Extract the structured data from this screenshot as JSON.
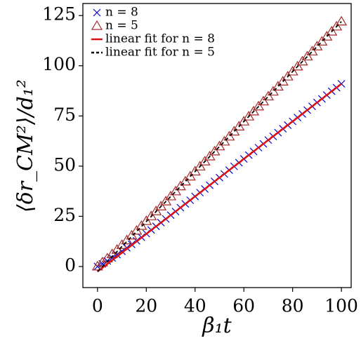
{
  "chart_data": {
    "type": "scatter",
    "xlabel": "β₁t",
    "ylabel": "⟨δr_CM²⟩/d₁²",
    "xlim": [
      -6,
      104
    ],
    "ylim": [
      -10.5,
      131
    ],
    "xticks": [
      0,
      20,
      40,
      60,
      80,
      100
    ],
    "yticks": [
      0,
      25,
      50,
      75,
      100,
      125
    ],
    "legend": "upper left",
    "series": [
      {
        "name": "n = 8",
        "color": "#0000cc",
        "marker": "x",
        "x": [
          0,
          2,
          4,
          6,
          8,
          10,
          12,
          14,
          16,
          18,
          20,
          22,
          24,
          26,
          28,
          30,
          32,
          34,
          36,
          38,
          40,
          42,
          44,
          46,
          48,
          50,
          52,
          54,
          56,
          58,
          60,
          62,
          64,
          66,
          68,
          70,
          72,
          74,
          76,
          78,
          80,
          82,
          84,
          86,
          88,
          90,
          92,
          94,
          96,
          98,
          100
        ],
        "values": [
          0,
          1.3,
          2.8,
          4.3,
          5.9,
          7.6,
          9.3,
          11.0,
          12.8,
          14.6,
          16.4,
          18.2,
          20.0,
          21.9,
          23.7,
          25.6,
          27.4,
          29.3,
          31.2,
          33.0,
          34.9,
          36.8,
          38.6,
          40.5,
          42.4,
          44.3,
          46.1,
          48.0,
          49.9,
          51.7,
          53.6,
          55.5,
          57.3,
          59.2,
          61.1,
          63.0,
          64.8,
          66.7,
          68.6,
          70.4,
          72.3,
          74.2,
          76.0,
          77.9,
          79.8,
          81.7,
          83.5,
          85.4,
          87.3,
          89.1,
          91.0
        ]
      },
      {
        "name": "n = 5",
        "color": "#a52a2a",
        "marker": "triangle",
        "x": [
          0,
          2,
          4,
          6,
          8,
          10,
          12,
          14,
          16,
          18,
          20,
          22,
          24,
          26,
          28,
          30,
          32,
          34,
          36,
          38,
          40,
          42,
          44,
          46,
          48,
          50,
          52,
          54,
          56,
          58,
          60,
          62,
          64,
          66,
          68,
          70,
          72,
          74,
          76,
          78,
          80,
          82,
          84,
          86,
          88,
          90,
          92,
          94,
          96,
          98,
          100
        ],
        "values": [
          0,
          2.0,
          4.0,
          6.1,
          8.3,
          10.7,
          13.0,
          15.4,
          17.8,
          20.2,
          22.6,
          25.0,
          27.5,
          29.9,
          32.4,
          34.9,
          37.4,
          39.9,
          42.3,
          44.8,
          47.3,
          49.8,
          52.3,
          54.8,
          57.3,
          59.8,
          62.2,
          64.7,
          67.2,
          69.7,
          72.2,
          74.7,
          77.2,
          79.7,
          82.2,
          84.7,
          87.1,
          89.6,
          92.1,
          94.6,
          97.1,
          99.6,
          102.1,
          104.6,
          107.1,
          109.6,
          112.0,
          114.5,
          117.0,
          119.5,
          122.0
        ]
      },
      {
        "name": "linear fit for n = 8",
        "color": "#e01010",
        "line": "solid",
        "x": [
          0,
          100
        ],
        "values": [
          -2.5,
          91
        ]
      },
      {
        "name": "linear fit for n = 5",
        "color": "#000000",
        "line": "dashed",
        "x": [
          0,
          100
        ],
        "values": [
          -2.5,
          122
        ]
      }
    ]
  }
}
